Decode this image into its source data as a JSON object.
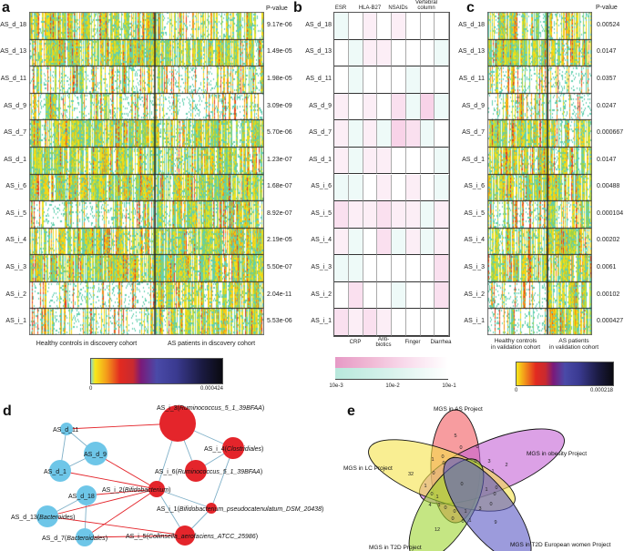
{
  "panels": {
    "a": "a",
    "b": "b",
    "c": "c",
    "d": "d",
    "e": "e"
  },
  "rows": [
    "AS_d_18",
    "AS_d_13",
    "AS_d_11",
    "AS_d_9",
    "AS_d_7",
    "AS_d_1",
    "AS_i_6",
    "AS_i_5",
    "AS_i_4",
    "AS_i_3",
    "AS_i_2",
    "AS_i_1"
  ],
  "panel_a": {
    "pvalue_header": "P-value",
    "pvalues": [
      "9.17e-06",
      "1.49e-05",
      "1.98e-05",
      "3.09e-09",
      "5.70e-06",
      "1.23e-07",
      "1.68e-07",
      "8.92e-07",
      "2.19e-05",
      "5.50e-07",
      "2.04e-11",
      "5.53e-06"
    ],
    "group_left": "Healthy controls in discovery cohort",
    "group_right": "AS patients in discovery cohort",
    "colorbar_min": "0",
    "colorbar_max": "0.000424"
  },
  "panel_b": {
    "top_labels": [
      "ESR",
      "HLA-B27",
      "NSAIDs",
      "Vertebral column"
    ],
    "bottom_labels": [
      "CRP",
      "Anti-biotics",
      "Finger",
      "Diarrhea"
    ],
    "colorbar_ticks": [
      "10e-3",
      "10e-2",
      "10e-1"
    ],
    "colors": {
      "positive": "#e87ab8",
      "negative": "#7fd6c4"
    },
    "cells": [
      [
        -1,
        0,
        1,
        0,
        1,
        0,
        0,
        0
      ],
      [
        0,
        -1,
        1,
        1,
        0,
        0,
        0,
        -1
      ],
      [
        0,
        -1,
        0,
        0,
        0,
        -1,
        0,
        0
      ],
      [
        1,
        0,
        1,
        0,
        2,
        -1,
        3,
        -1
      ],
      [
        1,
        -1,
        1,
        -1,
        3,
        2,
        -1,
        0
      ],
      [
        1,
        -1,
        1,
        1,
        0,
        0,
        0,
        -1
      ],
      [
        -1,
        -1,
        0,
        1,
        0,
        1,
        0,
        -1
      ],
      [
        2,
        1,
        1,
        2,
        1,
        1,
        -1,
        1
      ],
      [
        1,
        -1,
        0,
        2,
        -1,
        1,
        -1,
        1
      ],
      [
        -1,
        -1,
        0,
        0,
        0,
        0,
        0,
        2
      ],
      [
        0,
        2,
        0,
        0,
        -1,
        0,
        0,
        2
      ],
      [
        2,
        1,
        2,
        1,
        0,
        0,
        0,
        0
      ]
    ]
  },
  "panel_c": {
    "pvalue_header": "P-value",
    "pvalues": [
      "0.00524",
      "0.0147",
      "0.0357",
      "0.0247",
      "0.000667",
      "0.0147",
      "0.00488",
      "0.000104",
      "0.00202",
      "0.0061",
      "0.00102",
      "0.000427"
    ],
    "group_left": [
      "Healthy controls",
      "in validation cohort"
    ],
    "group_right": [
      "AS patients",
      "in validation cohort"
    ],
    "colorbar_min": "0",
    "colorbar_max": "0.000218"
  },
  "panel_d": {
    "colors": {
      "decreased": "#6ec6e8",
      "increased": "#e4252b",
      "positive_edge": "#e4252b",
      "negative_edge": "#7fb0c8"
    },
    "nodes": [
      {
        "id": "d11",
        "label": "AS_d_11",
        "taxon": "",
        "type": "decreased"
      },
      {
        "id": "d9",
        "label": "AS_d_9",
        "taxon": "",
        "type": "decreased"
      },
      {
        "id": "d1",
        "label": "AS_d_1",
        "taxon": "",
        "type": "decreased"
      },
      {
        "id": "d18",
        "label": "AS_d_18",
        "taxon": "",
        "type": "decreased"
      },
      {
        "id": "d13",
        "label": "AS_d_13",
        "taxon": "Bacteroides",
        "type": "decreased"
      },
      {
        "id": "d7",
        "label": "AS_d_7",
        "taxon": "Bacteroidales",
        "type": "decreased"
      },
      {
        "id": "i3",
        "label": "AS_i_3",
        "taxon": "Ruminococcus_5_1_39BFAA",
        "type": "increased"
      },
      {
        "id": "i4",
        "label": "AS_i_4",
        "taxon": "Clostridiales",
        "type": "increased"
      },
      {
        "id": "i6",
        "label": "AS_i_6",
        "taxon": "Ruminococcus_5_1_39BFAA",
        "type": "increased"
      },
      {
        "id": "i2",
        "label": "AS_i_2",
        "taxon": "Bifidobacterium",
        "type": "increased"
      },
      {
        "id": "i1",
        "label": "AS_i_1",
        "taxon": "Bifidobacterium_pseudocatenulatum_DSM_20438",
        "type": "increased"
      },
      {
        "id": "i5",
        "label": "AS_i_5",
        "taxon": "Collinsella_aerofaciens_ATCC_25986",
        "type": "increased"
      }
    ],
    "edges": [
      [
        "d11",
        "d9",
        "negative"
      ],
      [
        "d11",
        "d1",
        "negative"
      ],
      [
        "d9",
        "d1",
        "negative"
      ],
      [
        "d18",
        "d13",
        "negative"
      ],
      [
        "d18",
        "d7",
        "negative"
      ],
      [
        "i3",
        "i4",
        "negative"
      ],
      [
        "i3",
        "i6",
        "negative"
      ],
      [
        "i3",
        "i2",
        "negative"
      ],
      [
        "i4",
        "i6",
        "negative"
      ],
      [
        "i4",
        "i1",
        "negative"
      ],
      [
        "i2",
        "i1",
        "negative"
      ],
      [
        "i2",
        "i5",
        "negative"
      ],
      [
        "i1",
        "i5",
        "negative"
      ],
      [
        "d11",
        "i3",
        "positive"
      ],
      [
        "d9",
        "i2",
        "positive"
      ],
      [
        "d1",
        "i2",
        "positive"
      ],
      [
        "d18",
        "i2",
        "positive"
      ],
      [
        "d13",
        "i2",
        "positive"
      ],
      [
        "d13",
        "i5",
        "positive"
      ],
      [
        "d7",
        "i2",
        "positive"
      ],
      [
        "d7",
        "i5",
        "positive"
      ]
    ]
  },
  "panel_e": {
    "sets": [
      {
        "name": "MGS in AS Project",
        "color": "#f25a5f"
      },
      {
        "name": "MGS in obesity Project",
        "color": "#c462d6"
      },
      {
        "name": "MGS in LC Project",
        "color": "#f5e34a"
      },
      {
        "name": "MGS in T2D Project",
        "color": "#9fd630"
      },
      {
        "name": "MGS in T2D European women Project",
        "color": "#5a58c4"
      }
    ],
    "counts": [
      "5",
      "2",
      "32",
      "12",
      "9",
      "0",
      "1",
      "0",
      "0",
      "0",
      "0",
      "0",
      "3",
      "0",
      "1",
      "1",
      "0",
      "1",
      "0",
      "1",
      "0",
      "4",
      "0",
      "1",
      "3",
      "0",
      "0",
      "1",
      "0",
      "1",
      "0"
    ]
  }
}
